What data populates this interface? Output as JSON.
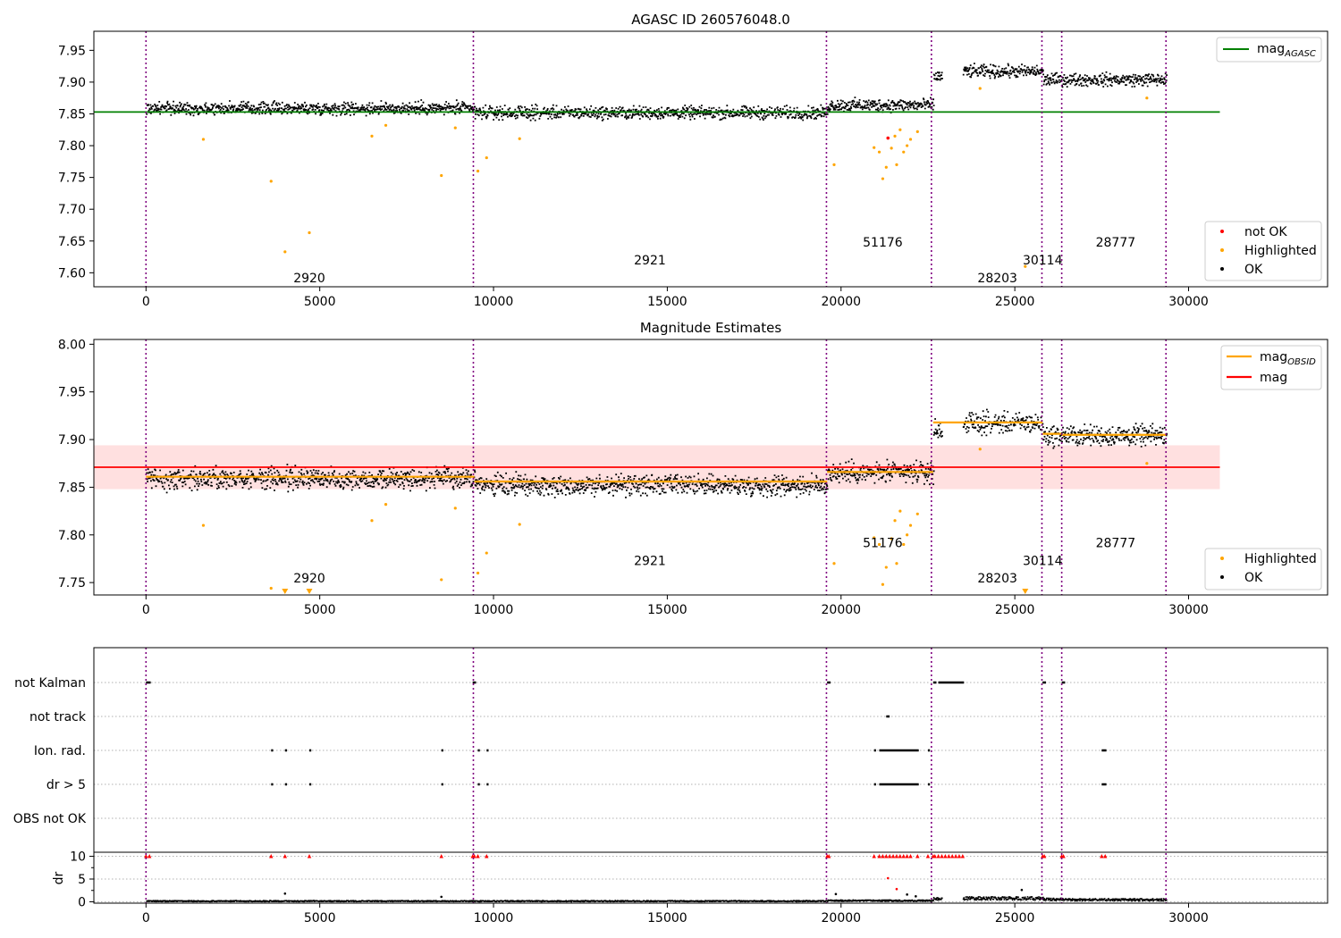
{
  "chart_data": [
    {
      "type": "scatter",
      "title": "AGASC ID 260576048.0",
      "xlim": [
        -1500,
        34000
      ],
      "ylim": [
        7.578,
        7.98
      ],
      "x_ticks": [
        "0",
        "5000",
        "10000",
        "15000",
        "20000",
        "25000",
        "30000"
      ],
      "y_ticks": [
        "7.60",
        "7.65",
        "7.70",
        "7.75",
        "7.80",
        "7.85",
        "7.90",
        "7.95"
      ],
      "reference_line": {
        "name": "mag",
        "subscript": "AGASC",
        "value": 7.853,
        "x_range": [
          -1500,
          30900
        ],
        "color": "#008000"
      },
      "legend_top": {
        "position": "upper right",
        "entries": [
          {
            "label": "mag",
            "subscript": "AGASC",
            "color": "#008000",
            "marker": "line"
          }
        ]
      },
      "legend_bottom": {
        "position": "lower right",
        "entries": [
          {
            "label": "not OK",
            "color": "#ff0000",
            "marker": "dot"
          },
          {
            "label": "Highlighted",
            "color": "#ffa500",
            "marker": "dot"
          },
          {
            "label": "OK",
            "color": "#000000",
            "marker": "dot"
          }
        ]
      },
      "obsid_labels": [
        {
          "text": "2920",
          "x": 4700,
          "y": 7.592
        },
        {
          "text": "2921",
          "x": 14500,
          "y": 7.62
        },
        {
          "text": "51176",
          "x": 21200,
          "y": 7.648
        },
        {
          "text": "28203",
          "x": 24500,
          "y": 7.592
        },
        {
          "text": "30114",
          "x": 25800,
          "y": 7.62
        },
        {
          "text": "28777",
          "x": 27900,
          "y": 7.648
        }
      ],
      "ok_segments": [
        {
          "x": [
            0,
            9450
          ],
          "center": 7.86,
          "spread": 0.012
        },
        {
          "x": [
            9450,
            19600
          ],
          "center": 7.853,
          "spread": 0.012
        },
        {
          "x": [
            19600,
            22650
          ],
          "center": 7.865,
          "spread": 0.012
        },
        {
          "x": [
            22650,
            22900
          ],
          "center": 7.91,
          "spread": 0.012
        },
        {
          "x": [
            23500,
            25800
          ],
          "center": 7.918,
          "spread": 0.012
        },
        {
          "x": [
            25800,
            26350
          ],
          "center": 7.905,
          "spread": 0.012
        },
        {
          "x": [
            26350,
            29350
          ],
          "center": 7.905,
          "spread": 0.012
        }
      ],
      "highlighted_points": [
        [
          1650,
          7.81
        ],
        [
          3600,
          7.744
        ],
        [
          4000,
          7.633
        ],
        [
          4700,
          7.663
        ],
        [
          6500,
          7.815
        ],
        [
          6900,
          7.832
        ],
        [
          8500,
          7.753
        ],
        [
          8900,
          7.828
        ],
        [
          9550,
          7.76
        ],
        [
          9800,
          7.781
        ],
        [
          10750,
          7.811
        ],
        [
          19800,
          7.77
        ],
        [
          20950,
          7.797
        ],
        [
          21100,
          7.79
        ],
        [
          21200,
          7.748
        ],
        [
          21300,
          7.766
        ],
        [
          21450,
          7.796
        ],
        [
          21550,
          7.815
        ],
        [
          21600,
          7.77
        ],
        [
          21700,
          7.825
        ],
        [
          21800,
          7.79
        ],
        [
          21900,
          7.8
        ],
        [
          22000,
          7.81
        ],
        [
          22200,
          7.822
        ],
        [
          25300,
          7.61
        ],
        [
          24000,
          7.89
        ],
        [
          28800,
          7.875
        ]
      ],
      "not_ok_points": [
        [
          21350,
          7.812
        ]
      ]
    },
    {
      "type": "scatter",
      "title": "Magnitude Estimates",
      "xlim": [
        -1500,
        34000
      ],
      "ylim": [
        7.737,
        8.005
      ],
      "x_ticks": [
        "0",
        "5000",
        "10000",
        "15000",
        "20000",
        "25000",
        "30000"
      ],
      "y_ticks": [
        "7.75",
        "7.80",
        "7.85",
        "7.90",
        "7.95",
        "8.00"
      ],
      "mag_line": {
        "name": "mag",
        "value": 7.871,
        "band": [
          7.848,
          7.894
        ],
        "x_range": [
          -1500,
          30900
        ],
        "color": "#ff0000"
      },
      "obsid_mag": [
        {
          "x": [
            0,
            9450
          ],
          "value": 7.861
        },
        {
          "x": [
            9450,
            19600
          ],
          "value": 7.856
        },
        {
          "x": [
            19600,
            22650
          ],
          "value": 7.866
        },
        {
          "x": [
            22650,
            25800
          ],
          "value": 7.918
        },
        {
          "x": [
            25800,
            26350
          ],
          "value": 7.906
        },
        {
          "x": [
            26350,
            29350
          ],
          "value": 7.905
        }
      ],
      "legend_top": {
        "position": "upper right",
        "entries": [
          {
            "label": "mag",
            "subscript": "OBSID",
            "color": "#ffa500",
            "marker": "line"
          },
          {
            "label": "mag",
            "subscript": "",
            "color": "#ff0000",
            "marker": "line"
          }
        ]
      },
      "legend_bottom": {
        "position": "lower right",
        "entries": [
          {
            "label": "Highlighted",
            "color": "#ffa500",
            "marker": "dot"
          },
          {
            "label": "OK",
            "color": "#000000",
            "marker": "dot"
          }
        ]
      },
      "obsid_labels": [
        {
          "text": "2920",
          "x": 4700,
          "y": 7.755
        },
        {
          "text": "2921",
          "x": 14500,
          "y": 7.773
        },
        {
          "text": "51176",
          "x": 21200,
          "y": 7.792
        },
        {
          "text": "28203",
          "x": 24500,
          "y": 7.755
        },
        {
          "text": "30114",
          "x": 25800,
          "y": 7.773
        },
        {
          "text": "28777",
          "x": 27900,
          "y": 7.792
        }
      ],
      "ok_segments": [
        {
          "x": [
            0,
            9450
          ],
          "center": 7.86,
          "spread": 0.013
        },
        {
          "x": [
            9450,
            19600
          ],
          "center": 7.853,
          "spread": 0.013
        },
        {
          "x": [
            19600,
            22650
          ],
          "center": 7.866,
          "spread": 0.013
        },
        {
          "x": [
            22650,
            22900
          ],
          "center": 7.91,
          "spread": 0.013
        },
        {
          "x": [
            23500,
            25800
          ],
          "center": 7.918,
          "spread": 0.013
        },
        {
          "x": [
            25800,
            26350
          ],
          "center": 7.905,
          "spread": 0.013
        },
        {
          "x": [
            26350,
            29350
          ],
          "center": 7.905,
          "spread": 0.013
        }
      ],
      "highlighted_points": [
        [
          1650,
          7.81
        ],
        [
          3600,
          7.744
        ],
        [
          6500,
          7.815
        ],
        [
          6900,
          7.832
        ],
        [
          8500,
          7.753
        ],
        [
          8900,
          7.828
        ],
        [
          9550,
          7.76
        ],
        [
          9800,
          7.781
        ],
        [
          10750,
          7.811
        ],
        [
          19800,
          7.77
        ],
        [
          20950,
          7.797
        ],
        [
          21100,
          7.79
        ],
        [
          21200,
          7.748
        ],
        [
          21300,
          7.766
        ],
        [
          21450,
          7.796
        ],
        [
          21550,
          7.815
        ],
        [
          21600,
          7.77
        ],
        [
          21700,
          7.825
        ],
        [
          21800,
          7.79
        ],
        [
          21900,
          7.8
        ],
        [
          22000,
          7.81
        ],
        [
          22200,
          7.822
        ],
        [
          24000,
          7.89
        ],
        [
          28800,
          7.875
        ]
      ],
      "lower_triangles": [
        4000,
        4700,
        25300
      ]
    },
    {
      "type": "scatter",
      "title": "",
      "xlim": [
        -1500,
        34000
      ],
      "x_ticks": [
        "0",
        "5000",
        "10000",
        "15000",
        "20000",
        "25000",
        "30000"
      ],
      "flag_rows": [
        "not Kalman",
        "not track",
        "Ion. rad.",
        "dr > 5",
        "OBS not OK"
      ],
      "flag_points": {
        "not Kalman": [
          [
            0,
            100
          ],
          [
            9400,
            9450
          ],
          [
            19600,
            19650
          ],
          [
            22650,
            22700
          ],
          [
            22800,
            23500
          ],
          [
            25800,
            25850
          ],
          [
            26350,
            26400
          ]
        ],
        "not track": [
          [
            21300,
            21350
          ]
        ],
        "Ion. rad.": [
          [
            3600,
            3600
          ],
          [
            4000,
            4000
          ],
          [
            4700,
            4700
          ],
          [
            8500,
            8500
          ],
          [
            9550,
            9550
          ],
          [
            9800,
            9800
          ],
          [
            20950,
            20950
          ],
          [
            21100,
            22200
          ],
          [
            22500,
            22500
          ],
          [
            27500,
            27600
          ]
        ],
        "dr > 5": [
          [
            3600,
            3600
          ],
          [
            4000,
            4000
          ],
          [
            4700,
            4700
          ],
          [
            8500,
            8500
          ],
          [
            9550,
            9550
          ],
          [
            9800,
            9800
          ],
          [
            20950,
            20950
          ],
          [
            21100,
            22200
          ],
          [
            22500,
            22500
          ],
          [
            27500,
            27600
          ]
        ],
        "OBS not OK": []
      },
      "dr_axis": {
        "ylabel": "dr",
        "ticks": [
          "0",
          "5",
          "10"
        ],
        "ylim": [
          -0.3,
          10.5
        ]
      },
      "dr_red_triangles": [
        0,
        100,
        3600,
        4000,
        4700,
        8500,
        9400,
        9450,
        9550,
        9800,
        19600,
        19650,
        20950,
        21100,
        21200,
        21300,
        21400,
        21500,
        21600,
        21700,
        21800,
        21900,
        22000,
        22200,
        22500,
        22650,
        22700,
        22800,
        22900,
        23000,
        23100,
        23200,
        23300,
        23400,
        23500,
        25800,
        25850,
        26350,
        26400,
        27500,
        27600
      ],
      "dr_segments": [
        {
          "x": [
            0,
            9450
          ],
          "level": 0.3
        },
        {
          "x": [
            9450,
            19600
          ],
          "level": 0.3
        },
        {
          "x": [
            19600,
            22650
          ],
          "level": 0.4
        },
        {
          "x": [
            22650,
            22900
          ],
          "level": 0.8
        },
        {
          "x": [
            23500,
            25800
          ],
          "level": 0.9
        },
        {
          "x": [
            25800,
            26350
          ],
          "level": 0.7
        },
        {
          "x": [
            26350,
            29350
          ],
          "level": 0.6
        }
      ],
      "dr_outliers": [
        [
          4000,
          1.8
        ],
        [
          8500,
          1.1
        ],
        [
          19850,
          1.7
        ],
        [
          21350,
          5.2
        ],
        [
          21600,
          2.8
        ],
        [
          21900,
          1.6
        ],
        [
          22150,
          1.2
        ],
        [
          25200,
          2.6
        ]
      ]
    }
  ],
  "obs_boundaries": [
    0,
    9420,
    19580,
    22600,
    25780,
    26350,
    29350
  ]
}
